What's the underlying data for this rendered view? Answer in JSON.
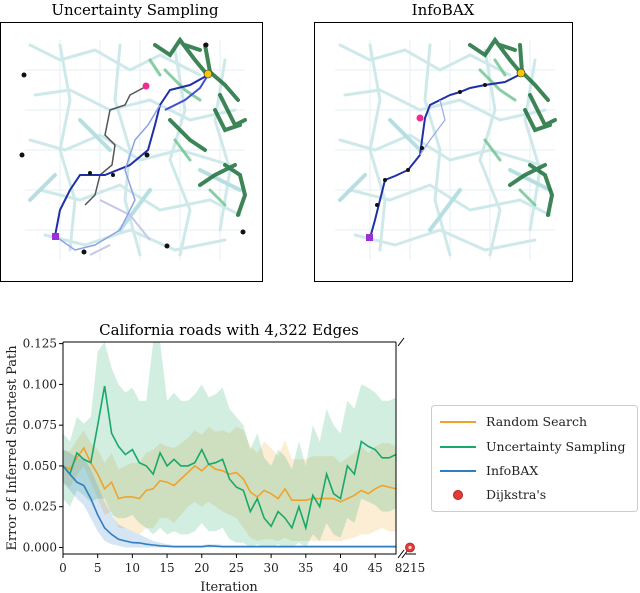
{
  "maps": {
    "left_title": "Uncertainty Sampling",
    "right_title": "InfoBAX"
  },
  "colors": {
    "random": "#f0a32c",
    "uncertainty": "#1aa86a",
    "infobax": "#2f7ec2",
    "dijkstra": "#e53a3a",
    "road": "#cfe9ea",
    "explored_dark": "#1b6e3a",
    "path": "#1f2fa8",
    "start": "#9b30d6",
    "goal": "#f2c80f",
    "waypoint": "#ef2f8f"
  },
  "chart_data": {
    "type": "line",
    "title": "California roads with 4,322 Edges",
    "xlabel": "Iteration",
    "ylabel": "Error of Inferred Shortest Path",
    "ylim": [
      -0.004,
      0.126
    ],
    "xlim": [
      0,
      48
    ],
    "x_ticks": [
      0,
      5,
      10,
      15,
      20,
      25,
      30,
      35,
      40,
      45
    ],
    "x_tick_labels": [
      "0",
      "5",
      "10",
      "15",
      "20",
      "25",
      "30",
      "35",
      "40",
      "45"
    ],
    "x_break_label": "8215",
    "y_ticks": [
      0.0,
      0.025,
      0.05,
      0.075,
      0.1,
      0.125
    ],
    "y_tick_labels": [
      "0.000",
      "0.025",
      "0.050",
      "0.075",
      "0.100",
      "0.125"
    ],
    "x": [
      0,
      1,
      2,
      3,
      4,
      5,
      6,
      7,
      8,
      9,
      10,
      11,
      12,
      13,
      14,
      15,
      16,
      17,
      18,
      19,
      20,
      21,
      22,
      23,
      24,
      25,
      26,
      27,
      28,
      29,
      30,
      31,
      32,
      33,
      34,
      35,
      36,
      37,
      38,
      39,
      40,
      41,
      42,
      43,
      44,
      45,
      46,
      47,
      48
    ],
    "legend": [
      "Random Search",
      "Uncertainty Sampling",
      "InfoBAX",
      "Dijkstra's"
    ],
    "series": [
      {
        "name": "Random Search",
        "values": [
          0.05,
          0.048,
          0.055,
          0.061,
          0.052,
          0.045,
          0.036,
          0.04,
          0.03,
          0.031,
          0.031,
          0.03,
          0.035,
          0.036,
          0.041,
          0.04,
          0.038,
          0.042,
          0.046,
          0.05,
          0.047,
          0.051,
          0.048,
          0.047,
          0.045,
          0.046,
          0.042,
          0.034,
          0.031,
          0.035,
          0.033,
          0.03,
          0.036,
          0.029,
          0.029,
          0.029,
          0.03,
          0.03,
          0.03,
          0.03,
          0.028,
          0.03,
          0.032,
          0.035,
          0.033,
          0.036,
          0.038,
          0.037,
          0.036
        ],
        "lower": [
          0.04,
          0.037,
          0.044,
          0.05,
          0.04,
          0.03,
          0.02,
          0.022,
          0.012,
          0.012,
          0.01,
          0.008,
          0.012,
          0.012,
          0.018,
          0.018,
          0.015,
          0.02,
          0.025,
          0.028,
          0.025,
          0.028,
          0.025,
          0.022,
          0.02,
          0.018,
          0.012,
          0.006,
          0.004,
          0.005,
          0.005,
          0.004,
          0.006,
          0.004,
          0.004,
          0.004,
          0.004,
          0.004,
          0.004,
          0.004,
          0.004,
          0.005,
          0.006,
          0.008,
          0.008,
          0.01,
          0.012,
          0.01,
          0.01
        ],
        "upper": [
          0.06,
          0.059,
          0.066,
          0.072,
          0.064,
          0.06,
          0.052,
          0.058,
          0.048,
          0.05,
          0.052,
          0.052,
          0.058,
          0.06,
          0.064,
          0.062,
          0.061,
          0.064,
          0.067,
          0.072,
          0.069,
          0.074,
          0.071,
          0.072,
          0.07,
          0.074,
          0.072,
          0.062,
          0.058,
          0.065,
          0.061,
          0.056,
          0.066,
          0.054,
          0.054,
          0.054,
          0.056,
          0.056,
          0.056,
          0.056,
          0.052,
          0.055,
          0.058,
          0.062,
          0.058,
          0.062,
          0.064,
          0.064,
          0.062
        ]
      },
      {
        "name": "Uncertainty Sampling",
        "values": [
          0.05,
          0.045,
          0.058,
          0.054,
          0.052,
          0.075,
          0.099,
          0.07,
          0.062,
          0.057,
          0.06,
          0.052,
          0.05,
          0.045,
          0.058,
          0.05,
          0.054,
          0.05,
          0.05,
          0.052,
          0.06,
          0.051,
          0.052,
          0.054,
          0.042,
          0.037,
          0.035,
          0.022,
          0.03,
          0.018,
          0.013,
          0.022,
          0.018,
          0.012,
          0.025,
          0.012,
          0.032,
          0.025,
          0.045,
          0.033,
          0.03,
          0.05,
          0.045,
          0.065,
          0.062,
          0.06,
          0.055,
          0.055,
          0.057
        ],
        "lower": [
          0.03,
          0.025,
          0.035,
          0.032,
          0.028,
          0.03,
          0.03,
          0.02,
          0.018,
          0.018,
          0.02,
          0.015,
          0.012,
          0.008,
          0.012,
          0.008,
          0.01,
          0.008,
          0.008,
          0.01,
          0.015,
          0.01,
          0.01,
          0.012,
          0.005,
          0.003,
          0.003,
          0.0,
          0.002,
          0.0,
          0.0,
          0.002,
          0.0,
          0.0,
          0.003,
          0.0,
          0.008,
          0.004,
          0.015,
          0.008,
          0.006,
          0.018,
          0.015,
          0.03,
          0.028,
          0.026,
          0.022,
          0.022,
          0.024
        ],
        "upper": [
          0.07,
          0.065,
          0.08,
          0.076,
          0.08,
          0.12,
          0.126,
          0.11,
          0.1,
          0.095,
          0.098,
          0.09,
          0.09,
          0.126,
          0.126,
          0.09,
          0.095,
          0.09,
          0.09,
          0.094,
          0.1,
          0.092,
          0.094,
          0.098,
          0.085,
          0.08,
          0.075,
          0.06,
          0.07,
          0.055,
          0.05,
          0.06,
          0.056,
          0.048,
          0.065,
          0.05,
          0.075,
          0.065,
          0.085,
          0.075,
          0.07,
          0.09,
          0.085,
          0.1,
          0.098,
          0.095,
          0.09,
          0.09,
          0.092
        ]
      },
      {
        "name": "InfoBAX",
        "values": [
          0.05,
          0.045,
          0.04,
          0.038,
          0.03,
          0.02,
          0.012,
          0.008,
          0.005,
          0.004,
          0.003,
          0.0028,
          0.002,
          0.0015,
          0.001,
          0.0008,
          0.0005,
          0.0005,
          0.0005,
          0.0005,
          0.0005,
          0.001,
          0.0008,
          0.0005,
          0.0005,
          0.0005,
          0.0005,
          0.0005,
          0.0005,
          0.0005,
          0.0005,
          0.0005,
          0.0005,
          0.0005,
          0.0005,
          0.0005,
          0.0005,
          0.0005,
          0.0005,
          0.0005,
          0.0005,
          0.0005,
          0.0005,
          0.0005,
          0.0005,
          0.0005,
          0.0005,
          0.0005,
          0.0005
        ],
        "lower": [
          0.04,
          0.035,
          0.03,
          0.026,
          0.018,
          0.01,
          0.004,
          0.002,
          0.001,
          0.0,
          0.0,
          0.0,
          0.0,
          0.0,
          0.0,
          0.0,
          0.0,
          0.0,
          0.0,
          0.0,
          0.0,
          0.0,
          0.0,
          0.0,
          0.0,
          0.0,
          0.0,
          0.0,
          0.0,
          0.0,
          0.0,
          0.0,
          0.0,
          0.0,
          0.0,
          0.0,
          0.0,
          0.0,
          0.0,
          0.0,
          0.0,
          0.0,
          0.0,
          0.0,
          0.0,
          0.0,
          0.0,
          0.0,
          0.0
        ],
        "upper": [
          0.06,
          0.058,
          0.055,
          0.055,
          0.048,
          0.038,
          0.028,
          0.02,
          0.014,
          0.012,
          0.01,
          0.008,
          0.006,
          0.004,
          0.003,
          0.002,
          0.0015,
          0.0015,
          0.0015,
          0.0015,
          0.0015,
          0.002,
          0.002,
          0.0015,
          0.0015,
          0.0015,
          0.0015,
          0.0015,
          0.0015,
          0.0015,
          0.0015,
          0.0015,
          0.0015,
          0.0015,
          0.0015,
          0.0015,
          0.0015,
          0.0015,
          0.0015,
          0.0015,
          0.0015,
          0.0015,
          0.0015,
          0.0015,
          0.0015,
          0.0015,
          0.0015,
          0.0015,
          0.0015
        ]
      }
    ],
    "dijkstra_point": {
      "label": "8215",
      "value": 0.0
    }
  }
}
